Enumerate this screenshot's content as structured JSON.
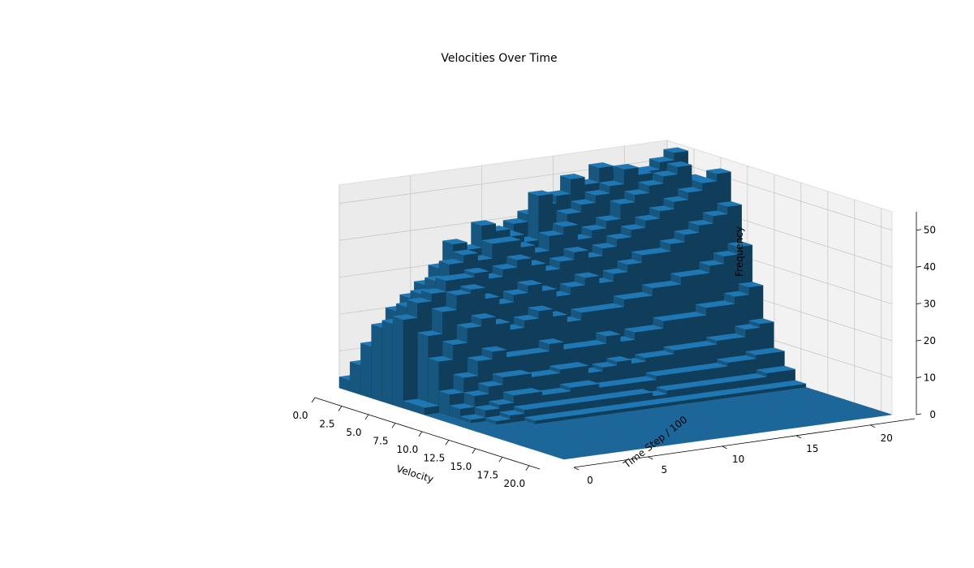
{
  "chart_data": {
    "type": "bar3d",
    "title": "Velocities Over Time",
    "xlabel": "Velocity",
    "ylabel": "Time Step / 100",
    "zlabel": "Frequency",
    "xlim": [
      0,
      21
    ],
    "ylim": [
      0,
      23
    ],
    "zlim": [
      0,
      55
    ],
    "x_ticks": [
      "0.0",
      "2.5",
      "5.0",
      "7.5",
      "10.0",
      "12.5",
      "15.0",
      "17.5",
      "20.0"
    ],
    "y_ticks": [
      "0",
      "5",
      "10",
      "15",
      "20"
    ],
    "z_ticks": [
      "0",
      "10",
      "20",
      "30",
      "40",
      "50"
    ],
    "bar_color": "#1f77b4",
    "grid": true,
    "bin_width_x": 1,
    "bin_width_y": 1,
    "frequencies": [
      [
        3,
        8,
        14,
        20,
        22,
        24,
        2,
        2,
        0,
        0,
        0,
        0,
        0,
        0,
        0,
        0,
        0,
        0,
        0,
        0,
        0
      ],
      [
        4,
        10,
        18,
        24,
        26,
        28,
        20,
        14,
        6,
        3,
        1,
        0,
        0,
        0,
        0,
        0,
        0,
        0,
        0,
        0,
        0
      ],
      [
        5,
        14,
        22,
        27,
        29,
        30,
        26,
        18,
        10,
        6,
        3,
        1,
        0,
        0,
        0,
        0,
        0,
        0,
        0,
        0,
        0
      ],
      [
        6,
        16,
        24,
        30,
        32,
        33,
        30,
        22,
        14,
        8,
        4,
        2,
        0,
        0,
        0,
        0,
        0,
        0,
        0,
        0,
        0
      ],
      [
        6,
        18,
        26,
        34,
        36,
        33,
        31,
        24,
        16,
        10,
        6,
        3,
        1,
        0,
        0,
        0,
        0,
        0,
        0,
        0,
        0
      ],
      [
        8,
        20,
        30,
        40,
        38,
        34,
        28,
        22,
        14,
        10,
        6,
        3,
        1,
        0,
        0,
        0,
        0,
        0,
        0,
        0,
        0
      ],
      [
        10,
        24,
        32,
        38,
        36,
        32,
        26,
        20,
        14,
        9,
        5,
        3,
        1,
        0,
        0,
        0,
        0,
        0,
        0,
        0,
        0
      ],
      [
        12,
        26,
        36,
        44,
        40,
        34,
        28,
        22,
        14,
        9,
        5,
        3,
        1,
        0,
        0,
        0,
        0,
        0,
        0,
        0,
        0
      ],
      [
        14,
        28,
        38,
        42,
        40,
        36,
        30,
        24,
        16,
        10,
        6,
        3,
        1,
        0,
        0,
        0,
        0,
        0,
        0,
        0,
        0
      ],
      [
        14,
        30,
        40,
        40,
        38,
        34,
        28,
        22,
        14,
        10,
        6,
        3,
        1,
        0,
        0,
        0,
        0,
        0,
        0,
        0,
        0
      ],
      [
        16,
        30,
        42,
        38,
        36,
        32,
        26,
        20,
        14,
        8,
        5,
        3,
        1,
        0,
        0,
        0,
        0,
        0,
        0,
        0,
        0
      ],
      [
        16,
        32,
        44,
        50,
        40,
        34,
        28,
        22,
        14,
        9,
        5,
        3,
        1,
        0,
        0,
        0,
        0,
        0,
        0,
        0,
        0
      ],
      [
        18,
        34,
        46,
        40,
        42,
        36,
        30,
        22,
        16,
        10,
        5,
        3,
        1,
        0,
        0,
        0,
        0,
        0,
        0,
        0,
        0
      ],
      [
        18,
        36,
        48,
        44,
        38,
        34,
        28,
        22,
        14,
        9,
        5,
        2,
        1,
        0,
        0,
        0,
        0,
        0,
        0,
        0,
        0
      ],
      [
        20,
        38,
        52,
        46,
        40,
        36,
        30,
        24,
        16,
        10,
        6,
        3,
        1,
        0,
        0,
        0,
        0,
        0,
        0,
        0,
        0
      ],
      [
        20,
        40,
        50,
        48,
        42,
        38,
        32,
        24,
        16,
        10,
        6,
        3,
        1,
        0,
        0,
        0,
        0,
        0,
        0,
        0,
        0
      ],
      [
        22,
        42,
        54,
        50,
        46,
        40,
        34,
        26,
        18,
        11,
        6,
        3,
        1,
        0,
        0,
        0,
        0,
        0,
        0,
        0,
        0
      ],
      [
        22,
        44,
        52,
        54,
        48,
        42,
        34,
        26,
        18,
        11,
        6,
        3,
        1,
        0,
        0,
        0,
        0,
        0,
        0,
        0,
        0
      ],
      [
        24,
        46,
        50,
        52,
        50,
        44,
        36,
        28,
        18,
        11,
        6,
        3,
        1,
        0,
        0,
        0,
        0,
        0,
        0,
        0,
        0
      ],
      [
        24,
        48,
        46,
        50,
        52,
        46,
        38,
        28,
        20,
        12,
        7,
        3,
        1,
        0,
        0,
        0,
        0,
        0,
        0,
        0,
        0
      ],
      [
        26,
        50,
        44,
        48,
        54,
        48,
        40,
        30,
        20,
        12,
        7,
        3,
        1,
        0,
        0,
        0,
        0,
        0,
        0,
        0,
        0
      ],
      [
        26,
        52,
        42,
        46,
        50,
        50,
        42,
        32,
        22,
        14,
        8,
        4,
        1,
        0,
        0,
        0,
        0,
        0,
        0,
        0,
        0
      ],
      [
        28,
        54,
        40,
        44,
        48,
        52,
        44,
        34,
        24,
        15,
        8,
        4,
        1,
        0,
        0,
        0,
        0,
        0,
        0,
        0,
        0
      ]
    ]
  }
}
